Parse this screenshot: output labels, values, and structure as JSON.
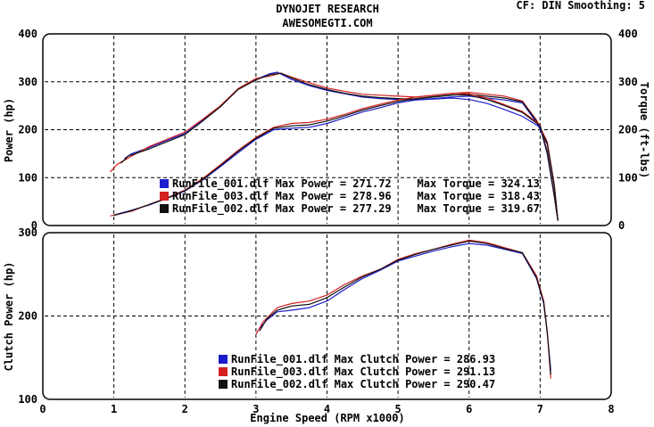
{
  "header": {
    "title_line1": "DYNOJET RESEARCH",
    "title_line2": "AWESOMEGTI.COM",
    "settings": "CF: DIN  Smoothing: 5"
  },
  "colors": {
    "run_001": "#1c1ccc",
    "run_003": "#d42020",
    "run_002": "#111111",
    "grid": "#000000",
    "background": "#ffffff"
  },
  "chart_data": [
    {
      "type": "line",
      "panel": "top",
      "xlabel": "",
      "ylabel": "Power (hp)",
      "ylabel_right": "Torque (ft-lbs)",
      "xlim": [
        0,
        8
      ],
      "ylim": [
        0,
        400
      ],
      "ylim_right": [
        0,
        400
      ],
      "yticks": [
        0,
        100,
        200,
        300,
        400
      ],
      "yticks_right": [
        0,
        100,
        200,
        300,
        400
      ],
      "grid": true,
      "legend": [
        {
          "color": "#1c1ccc",
          "text": "RunFile_001.dlf Max Power = 271.72    Max Torque = 324.13"
        },
        {
          "color": "#d42020",
          "text": "RunFile_003.dlf Max Power = 278.96    Max Torque = 318.43"
        },
        {
          "color": "#111111",
          "text": "RunFile_002.dlf Max Power = 277.29    Max Torque = 319.67"
        }
      ],
      "series": [
        {
          "quantity": "torque",
          "color": "#1c1ccc",
          "x": [
            1.15,
            1.25,
            1.5,
            1.75,
            2.0,
            2.25,
            2.5,
            2.75,
            3.0,
            3.2,
            3.3,
            3.5,
            3.75,
            4.0,
            4.25,
            4.5,
            4.75,
            5.0,
            5.25,
            5.5,
            5.75,
            6.0,
            6.25,
            6.5,
            6.75,
            6.95,
            7.1,
            7.2,
            7.25
          ],
          "y": [
            140,
            150,
            163,
            178,
            192,
            220,
            248,
            285,
            305,
            317,
            320,
            305,
            292,
            282,
            275,
            268,
            265,
            263,
            262,
            265,
            268,
            270,
            266,
            262,
            256,
            215,
            170,
            80,
            10
          ]
        },
        {
          "quantity": "torque",
          "color": "#d42020",
          "x": [
            0.95,
            1.05,
            1.25,
            1.5,
            1.75,
            2.0,
            2.25,
            2.5,
            2.75,
            3.0,
            3.2,
            3.35,
            3.5,
            3.75,
            4.0,
            4.25,
            4.5,
            4.75,
            5.0,
            5.25,
            5.5,
            5.75,
            6.0,
            6.25,
            6.5,
            6.75,
            6.95,
            7.1,
            7.2,
            7.25
          ],
          "y": [
            112,
            128,
            145,
            165,
            180,
            195,
            222,
            250,
            286,
            307,
            312,
            318,
            310,
            298,
            287,
            280,
            274,
            272,
            270,
            268,
            272,
            276,
            278,
            274,
            270,
            260,
            220,
            175,
            85,
            10
          ]
        },
        {
          "quantity": "torque",
          "color": "#111111",
          "x": [
            1.1,
            1.2,
            1.5,
            1.75,
            2.0,
            2.25,
            2.5,
            2.75,
            3.0,
            3.2,
            3.35,
            3.5,
            3.75,
            4.0,
            4.25,
            4.5,
            4.75,
            5.0,
            5.25,
            5.5,
            5.75,
            6.0,
            6.25,
            6.5,
            6.75,
            6.95,
            7.1,
            7.2,
            7.25
          ],
          "y": [
            130,
            145,
            160,
            175,
            190,
            218,
            248,
            284,
            304,
            315,
            318,
            308,
            294,
            284,
            276,
            270,
            267,
            265,
            264,
            268,
            272,
            274,
            270,
            266,
            258,
            218,
            172,
            82,
            10
          ]
        },
        {
          "quantity": "power",
          "color": "#1c1ccc",
          "x": [
            1.0,
            1.25,
            1.5,
            1.75,
            2.0,
            2.25,
            2.5,
            2.75,
            3.0,
            3.25,
            3.5,
            3.75,
            4.0,
            4.25,
            4.5,
            4.75,
            5.0,
            5.25,
            5.5,
            5.75,
            6.0,
            6.25,
            6.5,
            6.75,
            7.0,
            7.1,
            7.2,
            7.25
          ],
          "y": [
            22,
            32,
            43,
            57,
            72,
            95,
            123,
            152,
            180,
            200,
            203,
            205,
            213,
            225,
            237,
            246,
            256,
            262,
            264,
            266,
            263,
            255,
            242,
            228,
            205,
            150,
            60,
            10
          ]
        },
        {
          "quantity": "power",
          "color": "#d42020",
          "x": [
            0.95,
            1.25,
            1.5,
            1.75,
            2.0,
            2.25,
            2.5,
            2.75,
            3.0,
            3.25,
            3.5,
            3.75,
            4.0,
            4.25,
            4.5,
            4.75,
            5.0,
            5.25,
            5.5,
            5.75,
            6.0,
            6.25,
            6.5,
            6.75,
            7.0,
            7.1,
            7.2,
            7.25
          ],
          "y": [
            20,
            30,
            44,
            58,
            74,
            98,
            127,
            157,
            184,
            205,
            213,
            215,
            222,
            232,
            244,
            253,
            262,
            268,
            272,
            276,
            275,
            266,
            252,
            238,
            210,
            155,
            62,
            10
          ]
        },
        {
          "quantity": "power",
          "color": "#111111",
          "x": [
            1.0,
            1.25,
            1.5,
            1.75,
            2.0,
            2.25,
            2.5,
            2.75,
            3.0,
            3.25,
            3.5,
            3.75,
            4.0,
            4.25,
            4.5,
            4.75,
            5.0,
            5.25,
            5.5,
            5.75,
            6.0,
            6.25,
            6.5,
            6.75,
            7.0,
            7.1,
            7.2,
            7.25
          ],
          "y": [
            21,
            31,
            44,
            57,
            73,
            96,
            125,
            155,
            182,
            203,
            208,
            210,
            218,
            229,
            241,
            250,
            259,
            265,
            269,
            273,
            272,
            263,
            250,
            236,
            208,
            152,
            61,
            10
          ]
        }
      ]
    },
    {
      "type": "line",
      "panel": "bottom",
      "xlabel": "Engine Speed (RPM x1000)",
      "ylabel": "Clutch Power (hp)",
      "xlim": [
        0,
        8
      ],
      "ylim": [
        100,
        300
      ],
      "xticks": [
        0,
        1,
        2,
        3,
        4,
        5,
        6,
        7,
        8
      ],
      "yticks": [
        100,
        200,
        300
      ],
      "grid": true,
      "legend": [
        {
          "color": "#1c1ccc",
          "text": "RunFile_001.dlf Max Clutch Power = 286.93"
        },
        {
          "color": "#d42020",
          "text": "RunFile_003.dlf Max Clutch Power = 291.13"
        },
        {
          "color": "#111111",
          "text": "RunFile_002.dlf Max Clutch Power = 290.47"
        }
      ],
      "series": [
        {
          "color": "#1c1ccc",
          "x": [
            3.05,
            3.15,
            3.3,
            3.5,
            3.75,
            4.0,
            4.25,
            4.5,
            4.75,
            5.0,
            5.25,
            5.5,
            5.75,
            6.0,
            6.25,
            6.5,
            6.75,
            6.95,
            7.05,
            7.1,
            7.15
          ],
          "y": [
            185,
            195,
            205,
            207,
            210,
            218,
            232,
            245,
            255,
            266,
            272,
            278,
            283,
            287,
            285,
            280,
            275,
            245,
            215,
            180,
            135
          ]
        },
        {
          "color": "#d42020",
          "x": [
            3.0,
            3.1,
            3.3,
            3.5,
            3.75,
            4.0,
            4.25,
            4.5,
            4.75,
            5.0,
            5.25,
            5.5,
            5.75,
            6.0,
            6.25,
            6.5,
            6.75,
            6.95,
            7.05,
            7.1,
            7.15
          ],
          "y": [
            178,
            193,
            210,
            215,
            218,
            225,
            238,
            248,
            256,
            268,
            275,
            280,
            286,
            291,
            288,
            282,
            276,
            248,
            218,
            182,
            125
          ]
        },
        {
          "color": "#111111",
          "x": [
            3.05,
            3.15,
            3.3,
            3.5,
            3.75,
            4.0,
            4.25,
            4.5,
            4.75,
            5.0,
            5.25,
            5.5,
            5.75,
            6.0,
            6.25,
            6.5,
            6.75,
            6.95,
            7.05,
            7.1,
            7.15
          ],
          "y": [
            182,
            196,
            207,
            212,
            214,
            222,
            235,
            247,
            256,
            267,
            274,
            280,
            285,
            290,
            287,
            281,
            276,
            246,
            216,
            181,
            130
          ]
        }
      ]
    }
  ]
}
